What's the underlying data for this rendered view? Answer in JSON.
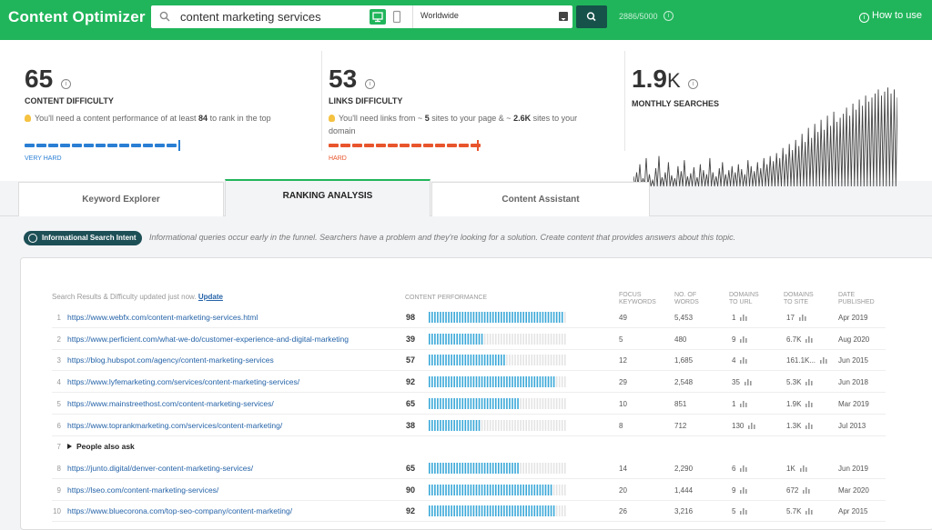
{
  "app": {
    "title": "Content Optimizer"
  },
  "search": {
    "query": "content marketing services",
    "location": "Worldwide",
    "credits": "2886/5000",
    "howto": "How to use"
  },
  "metrics": {
    "content_difficulty": {
      "value": "65",
      "label": "CONTENT DIFFICULTY",
      "desc_prefix": "You'll need a content performance of at least",
      "desc_value": "84",
      "desc_suffix": "to rank in the top",
      "level": "VERY HARD",
      "fill": 0.65,
      "color": "#2a7fd4"
    },
    "links_difficulty": {
      "value": "53",
      "label": "LINKS DIFFICULTY",
      "desc1": "You'll need links from ~",
      "desc_sites": "5",
      "desc2": "sites to your page & ~",
      "desc_domain": "2.6K",
      "desc3": "sites to your",
      "desc4": "domain",
      "level": "HARD",
      "fill": 0.53,
      "color": "#e8552c"
    },
    "monthly_searches": {
      "value": "1.9",
      "unit": "K",
      "label": "MONTHLY SEARCHES"
    }
  },
  "tabs": [
    {
      "label": "Keyword Explorer",
      "active": false
    },
    {
      "label": "RANKING ANALYSIS",
      "active": true
    },
    {
      "label": "Content Assistant",
      "active": false
    }
  ],
  "intent": {
    "badge": "Informational Search Intent",
    "text": "Informational queries occur early in the funnel. Searchers have a problem and they're looking for a solution. Create content that provides answers about this topic."
  },
  "table": {
    "caption": "Search Results & Difficulty updated just now.",
    "update": "Update",
    "headers": {
      "performance": "CONTENT PERFORMANCE",
      "focus": [
        "FOCUS",
        "KEYWORDS"
      ],
      "words": [
        "NO. OF",
        "WORDS"
      ],
      "durl": [
        "DOMAINS",
        "TO URL"
      ],
      "dsite": [
        "DOMAINS",
        "TO SITE"
      ],
      "date": [
        "DATE",
        "PUBLISHED"
      ]
    },
    "rows": [
      {
        "n": "1",
        "url": "https://www.webfx.com/content-marketing-services.html",
        "score": "98",
        "focus": "49",
        "words": "5,453",
        "durl": "1",
        "dsite": "17",
        "date": "Apr 2019"
      },
      {
        "n": "2",
        "url": "https://www.perficient.com/what-we-do/customer-experience-and-digital-marketing",
        "score": "39",
        "focus": "5",
        "words": "480",
        "durl": "9",
        "dsite": "6.7K",
        "date": "Aug 2020"
      },
      {
        "n": "3",
        "url": "https://blog.hubspot.com/agency/content-marketing-services",
        "score": "57",
        "focus": "12",
        "words": "1,685",
        "durl": "4",
        "dsite": "161.1K...",
        "date": "Jun 2015"
      },
      {
        "n": "4",
        "url": "https://www.lyfemarketing.com/services/content-marketing-services/",
        "score": "92",
        "focus": "29",
        "words": "2,548",
        "durl": "35",
        "dsite": "5.3K",
        "date": "Jun 2018"
      },
      {
        "n": "5",
        "url": "https://www.mainstreethost.com/content-marketing-services/",
        "score": "65",
        "focus": "10",
        "words": "851",
        "durl": "1",
        "dsite": "1.9K",
        "date": "Mar 2019"
      },
      {
        "n": "6",
        "url": "https://www.toprankmarketing.com/services/content-marketing/",
        "score": "38",
        "focus": "8",
        "words": "712",
        "durl": "130",
        "dsite": "1.3K",
        "date": "Jul 2013"
      },
      {
        "n": "7",
        "paa": "People also ask"
      },
      {
        "n": "8",
        "url": "https://junto.digital/denver-content-marketing-services/",
        "score": "65",
        "focus": "14",
        "words": "2,290",
        "durl": "6",
        "dsite": "1K",
        "date": "Jun 2019"
      },
      {
        "n": "9",
        "url": "https://lseo.com/content-marketing-services/",
        "score": "90",
        "focus": "20",
        "words": "1,444",
        "durl": "9",
        "dsite": "672",
        "date": "Mar 2020"
      },
      {
        "n": "10",
        "url": "https://www.bluecorona.com/top-seo-company/content-marketing/",
        "score": "92",
        "focus": "26",
        "words": "3,216",
        "durl": "5",
        "dsite": "5.7K",
        "date": "Apr 2015"
      }
    ]
  },
  "sparkline": [
    10,
    14,
    22,
    8,
    28,
    12,
    6,
    18,
    30,
    9,
    14,
    24,
    11,
    8,
    20,
    15,
    26,
    10,
    13,
    19,
    9,
    22,
    16,
    12,
    28,
    14,
    10,
    18,
    24,
    12,
    16,
    20,
    14,
    22,
    17,
    12,
    26,
    20,
    15,
    24,
    18,
    28,
    22,
    30,
    25,
    33,
    28,
    38,
    32,
    42,
    36,
    46,
    40,
    52,
    44,
    58,
    48,
    62,
    54,
    66,
    56,
    70,
    60,
    74,
    64,
    68,
    72,
    78,
    70,
    82,
    76,
    86,
    80,
    90,
    84,
    88,
    92,
    96,
    90,
    94,
    98,
    92,
    96,
    88
  ],
  "colors": {
    "green": "#21b55b",
    "blue": "#2a7fd4",
    "orange": "#e8552c",
    "perf": "#3aa8d8"
  }
}
